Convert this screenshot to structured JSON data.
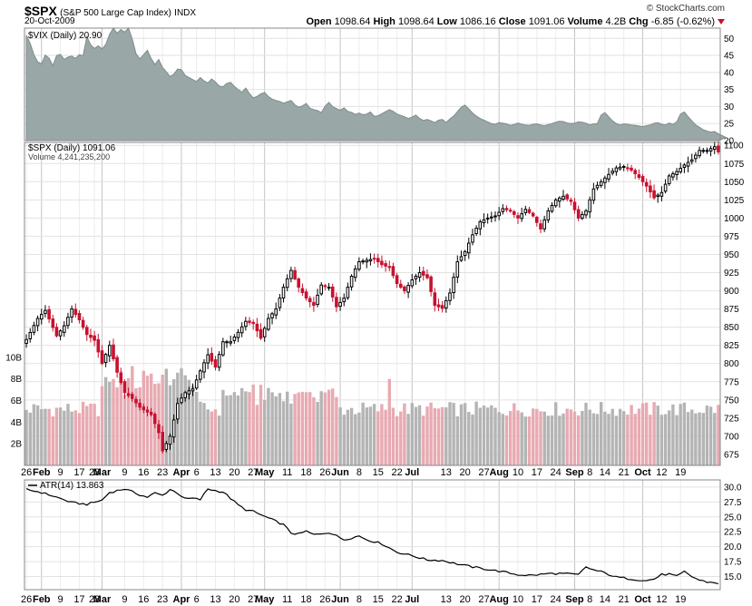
{
  "header": {
    "symbol": "$SPX",
    "name": "(S&P 500 Large Cap Index)",
    "exchange": "INDX",
    "date": "20-Oct-2009",
    "brand": "© StockCharts.com",
    "open_label": "Open",
    "open": "1098.64",
    "high_label": "High",
    "high": "1098.64",
    "low_label": "Low",
    "low": "1086.16",
    "close_label": "Close",
    "close": "1091.06",
    "volume_label": "Volume",
    "volume": "4.2B",
    "chg_label": "Chg",
    "chg": "-6.85 (-0.62%)"
  },
  "colors": {
    "up": "#000000",
    "down": "#c8102e",
    "vix_fill": "#9aa7a7",
    "vol_up": "#b4b4b4",
    "vol_down": "#e8aab2"
  },
  "chart_data": [
    {
      "type": "area",
      "legend": "$VIX (Daily) 20.90",
      "y_ticks": [
        20,
        25,
        30,
        35,
        40,
        45,
        50
      ],
      "ylim": [
        20,
        53
      ],
      "values": [
        50.9,
        48.5,
        45.2,
        43.1,
        42.5,
        45.1,
        44.2,
        42.0,
        45.0,
        45.3,
        43.8,
        44.5,
        44.8,
        44.1,
        45.2,
        44.9,
        50.5,
        48.1,
        47.0,
        47.8,
        46.9,
        48.2,
        51.2,
        53.0,
        51.5,
        52.6,
        51.8,
        53.0,
        49.8,
        45.5,
        44.0,
        45.2,
        46.5,
        44.1,
        42.3,
        43.8,
        41.5,
        40.2,
        38.8,
        39.5,
        41.0,
        40.8,
        39.1,
        38.5,
        37.9,
        37.3,
        38.5,
        37.5,
        36.9,
        38.1,
        37.2,
        36.0,
        35.8,
        36.8,
        37.1,
        35.9,
        35.0,
        34.2,
        35.4,
        33.8,
        32.5,
        33.0,
        33.7,
        34.1,
        32.9,
        32.2,
        31.8,
        31.5,
        31.0,
        31.4,
        31.8,
        30.5,
        29.8,
        30.2,
        30.9,
        29.5,
        29.1,
        28.8,
        28.2,
        30.1,
        31.2,
        30.0,
        29.4,
        28.9,
        29.6,
        28.6,
        28.3,
        27.7,
        28.1,
        27.6,
        27.8,
        28.4,
        27.1,
        27.3,
        27.9,
        28.5,
        29.1,
        28.6,
        27.8,
        27.4,
        27.0,
        26.5,
        26.9,
        27.5,
        26.5,
        25.9,
        26.2,
        25.8,
        25.3,
        26.0,
        26.2,
        25.3,
        26.4,
        27.2,
        28.5,
        29.8,
        30.4,
        29.3,
        28.1,
        27.2,
        26.5,
        26.0,
        25.5,
        25.0,
        24.8,
        25.3,
        25.1,
        24.9,
        24.5,
        24.7,
        25.2,
        24.8,
        24.6,
        24.5,
        24.8,
        24.9,
        24.6,
        24.4,
        24.7,
        25.0,
        25.4,
        25.7,
        25.6,
        25.2,
        25.0,
        25.1,
        25.5,
        25.4,
        25.1,
        24.6,
        24.9,
        25.0,
        27.5,
        28.2,
        27.0,
        25.8,
        25.0,
        24.6,
        24.9,
        24.8,
        24.6,
        24.5,
        24.3,
        24.1,
        24.4,
        24.6,
        25.1,
        25.3,
        24.8,
        24.6,
        25.2,
        24.8,
        25.5,
        27.8,
        28.4,
        27.0,
        25.8,
        24.6,
        23.9,
        23.2,
        22.8,
        22.5,
        22.7,
        22.0,
        21.5,
        20.9
      ],
      "x_index_last": 183
    },
    {
      "type": "candlestick",
      "legend": "$SPX (Daily) 1091.06",
      "volume_legend": "Volume 4,241,235,200",
      "y_ticks": [
        675,
        700,
        725,
        750,
        775,
        800,
        825,
        850,
        875,
        900,
        925,
        950,
        975,
        1000,
        1025,
        1050,
        1075,
        1100
      ],
      "ylim": [
        660,
        1104
      ],
      "volume_ticks": [
        "2B",
        "4B",
        "6B",
        "8B",
        "10B"
      ],
      "volume_max": 12,
      "x_ticks": [
        "26",
        "Feb",
        "9",
        "17",
        "23",
        "Mar",
        "9",
        "16",
        "23",
        "Apr",
        "6",
        "13",
        "20",
        "27",
        "May",
        "11",
        "18",
        "26",
        "Jun",
        "8",
        "15",
        "22",
        "Jul",
        "13",
        "20",
        "27",
        "Aug",
        "10",
        "17",
        "24",
        "Sep",
        "8",
        "14",
        "21",
        "Oct",
        "12",
        "19"
      ],
      "x_tick_index": [
        0,
        4,
        9,
        14,
        18,
        20,
        26,
        31,
        36,
        41,
        45,
        50,
        55,
        60,
        63,
        69,
        74,
        79,
        83,
        88,
        93,
        98,
        102,
        111,
        116,
        121,
        125,
        130,
        135,
        140,
        145,
        149,
        153,
        158,
        163,
        168,
        173
      ],
      "month_ticks": [
        "Feb",
        "Mar",
        "Apr",
        "May",
        "Jun",
        "Jul",
        "Aug",
        "Sep",
        "Oct"
      ],
      "anchors": [
        [
          0,
          833
        ],
        [
          3,
          862
        ],
        [
          5,
          873
        ],
        [
          8,
          838
        ],
        [
          10,
          852
        ],
        [
          12,
          875
        ],
        [
          14,
          860
        ],
        [
          16,
          840
        ],
        [
          18,
          832
        ],
        [
          20,
          800
        ],
        [
          22,
          825
        ],
        [
          24,
          788
        ],
        [
          26,
          760
        ],
        [
          28,
          752
        ],
        [
          30,
          740
        ],
        [
          33,
          730
        ],
        [
          35,
          705
        ],
        [
          36,
          680
        ],
        [
          38,
          700
        ],
        [
          40,
          745
        ],
        [
          42,
          760
        ],
        [
          44,
          765
        ],
        [
          46,
          790
        ],
        [
          48,
          812
        ],
        [
          50,
          795
        ],
        [
          52,
          830
        ],
        [
          54,
          830
        ],
        [
          56,
          843
        ],
        [
          58,
          858
        ],
        [
          60,
          855
        ],
        [
          62,
          835
        ],
        [
          64,
          862
        ],
        [
          66,
          875
        ],
        [
          68,
          905
        ],
        [
          70,
          928
        ],
        [
          72,
          905
        ],
        [
          74,
          890
        ],
        [
          76,
          880
        ],
        [
          78,
          908
        ],
        [
          80,
          905
        ],
        [
          82,
          878
        ],
        [
          84,
          890
        ],
        [
          86,
          920
        ],
        [
          88,
          940
        ],
        [
          90,
          942
        ],
        [
          92,
          944
        ],
        [
          94,
          936
        ],
        [
          96,
          932
        ],
        [
          98,
          910
        ],
        [
          100,
          900
        ],
        [
          102,
          915
        ],
        [
          104,
          925
        ],
        [
          106,
          918
        ],
        [
          108,
          880
        ],
        [
          110,
          876
        ],
        [
          112,
          897
        ],
        [
          114,
          940
        ],
        [
          116,
          954
        ],
        [
          118,
          977
        ],
        [
          120,
          995
        ],
        [
          122,
          1000
        ],
        [
          124,
          1003
        ],
        [
          126,
          1013
        ],
        [
          128,
          1010
        ],
        [
          130,
          1000
        ],
        [
          132,
          1012
        ],
        [
          134,
          1003
        ],
        [
          136,
          985
        ],
        [
          138,
          1010
        ],
        [
          140,
          1025
        ],
        [
          142,
          1030
        ],
        [
          144,
          1023
        ],
        [
          146,
          1000
        ],
        [
          148,
          1010
        ],
        [
          150,
          1040
        ],
        [
          152,
          1050
        ],
        [
          154,
          1060
        ],
        [
          156,
          1069
        ],
        [
          158,
          1071
        ],
        [
          160,
          1066
        ],
        [
          162,
          1056
        ],
        [
          164,
          1044
        ],
        [
          166,
          1028
        ],
        [
          168,
          1035
        ],
        [
          170,
          1058
        ],
        [
          172,
          1064
        ],
        [
          174,
          1073
        ],
        [
          176,
          1080
        ],
        [
          178,
          1093
        ],
        [
          180,
          1093
        ],
        [
          182,
          1098
        ],
        [
          183,
          1091
        ]
      ]
    },
    {
      "type": "line",
      "legend": "ATR(14) 13.863",
      "y_ticks": [
        15.0,
        17.5,
        20.0,
        22.5,
        25.0,
        27.5,
        30.0
      ],
      "y_tick_labels": [
        "15.0",
        "17.5",
        "20.0",
        "22.5",
        "25.0",
        "27.5",
        "30.0"
      ],
      "ylim": [
        12.8,
        31.2
      ],
      "anchors": [
        [
          0,
          29.6
        ],
        [
          4,
          29.1
        ],
        [
          8,
          28.3
        ],
        [
          12,
          27.4
        ],
        [
          16,
          27.1
        ],
        [
          20,
          27.8
        ],
        [
          22,
          29.1
        ],
        [
          26,
          29.7
        ],
        [
          30,
          28.7
        ],
        [
          32,
          28.3
        ],
        [
          34,
          29.0
        ],
        [
          36,
          28.6
        ],
        [
          38,
          29.6
        ],
        [
          40,
          29.0
        ],
        [
          42,
          28.0
        ],
        [
          44,
          28.1
        ],
        [
          46,
          27.9
        ],
        [
          48,
          29.7
        ],
        [
          50,
          29.4
        ],
        [
          52,
          29.2
        ],
        [
          54,
          28.1
        ],
        [
          56,
          27.0
        ],
        [
          58,
          26.2
        ],
        [
          60,
          25.9
        ],
        [
          64,
          24.8
        ],
        [
          68,
          23.7
        ],
        [
          70,
          22.3
        ],
        [
          72,
          22.1
        ],
        [
          74,
          22.6
        ],
        [
          76,
          22.0
        ],
        [
          80,
          22.4
        ],
        [
          84,
          21.2
        ],
        [
          88,
          21.8
        ],
        [
          90,
          21.2
        ],
        [
          94,
          20.5
        ],
        [
          98,
          19.1
        ],
        [
          102,
          18.5
        ],
        [
          106,
          17.8
        ],
        [
          110,
          17.7
        ],
        [
          114,
          17.1
        ],
        [
          118,
          16.6
        ],
        [
          122,
          16.2
        ],
        [
          126,
          15.8
        ],
        [
          130,
          15.3
        ],
        [
          134,
          15.2
        ],
        [
          138,
          15.5
        ],
        [
          142,
          15.5
        ],
        [
          146,
          15.3
        ],
        [
          148,
          16.6
        ],
        [
          150,
          16.1
        ],
        [
          152,
          15.8
        ],
        [
          156,
          14.9
        ],
        [
          160,
          14.6
        ],
        [
          164,
          14.3
        ],
        [
          166,
          14.6
        ],
        [
          168,
          15.3
        ],
        [
          170,
          15.4
        ],
        [
          172,
          15.0
        ],
        [
          174,
          15.8
        ],
        [
          176,
          15.0
        ],
        [
          178,
          14.4
        ],
        [
          180,
          14.1
        ],
        [
          183,
          13.9
        ]
      ]
    }
  ]
}
